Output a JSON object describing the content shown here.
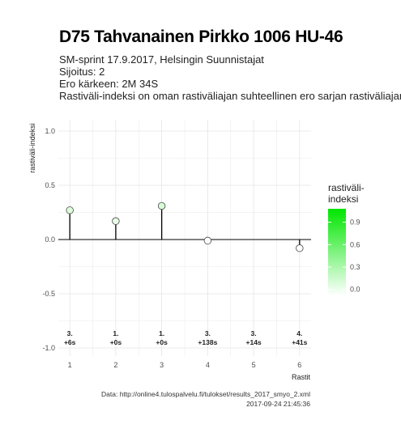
{
  "header": {
    "title": "D75 Tahvanainen Pirkko 1006 HU-46",
    "subtitle_lines": [
      "SM-sprint 17.9.2017, Helsingin Suunnistajat",
      "Sijoitus: 2",
      "Ero kärkeen: 2M 34S",
      "Rastiväli-indeksi on oman rastiväliajan suhteellinen ero sarjan rastiväliajan"
    ]
  },
  "chart_data": {
    "type": "lollipop",
    "xlabel": "Rastit",
    "ylabel": "rastiväli-indeksi",
    "x": [
      1,
      2,
      3,
      4,
      5,
      6
    ],
    "values": [
      0.27,
      0.17,
      0.31,
      -0.01,
      null,
      -0.08
    ],
    "split_labels": [
      {
        "place": "3.",
        "diff": "+6s"
      },
      {
        "place": "1.",
        "diff": "+0s"
      },
      {
        "place": "1.",
        "diff": "+0s"
      },
      {
        "place": "3.",
        "diff": "+138s"
      },
      {
        "place": "3.",
        "diff": "+14s"
      },
      {
        "place": "4.",
        "diff": "+41s"
      }
    ],
    "xlim": [
      0.75,
      6.25
    ],
    "ylim": [
      -1.0,
      1.0
    ],
    "y_ticks": [
      1.0,
      0.5,
      0.0,
      -0.5,
      -1.0
    ],
    "y_tick_labels": [
      "1.0",
      "0.5",
      "0.0",
      "-0.5",
      "-1.0"
    ],
    "x_ticks": [
      1,
      2,
      3,
      4,
      5,
      6
    ],
    "x_tick_labels": [
      "1",
      "2",
      "3",
      "4",
      "5",
      "6"
    ],
    "grid": true,
    "legend": {
      "title": "rastiväli-\nindeksi",
      "ticks": [
        "0.9",
        "0.6",
        "0.3",
        "0.0"
      ],
      "tick_values": [
        0.9,
        0.6,
        0.3,
        0.0
      ],
      "range": [
        -0.08,
        1.08
      ],
      "color_low": "#ffffff",
      "color_high": "#00e600",
      "position": "right"
    },
    "colors": {
      "stem": "#000000",
      "grid": "#e5e5e5",
      "point_border": "#444444"
    }
  },
  "caption": {
    "source": "Data: http://online4.tulospalvelu.fi/tulokset/results_2017_smyo_2.xml",
    "timestamp": "2017-09-24 21:45:36"
  }
}
